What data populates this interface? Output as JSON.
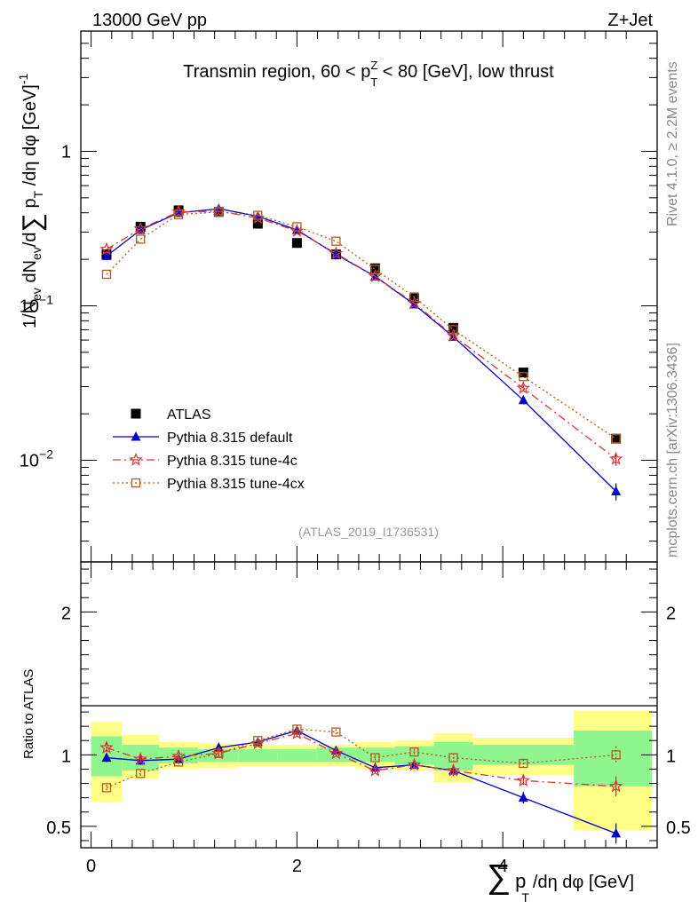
{
  "header": {
    "energy_label": "13000 GeV pp",
    "process_label": "Z+Jet"
  },
  "side_texts": {
    "rivet": "Rivet 4.1.0, ≥ 2.2M events",
    "mcplots": "mcplots.cern.ch [arXiv:1306.3436]"
  },
  "analysis_ref": "(ATLAS_2019_I1736531)",
  "chart_data": [
    {
      "type": "scatter",
      "panel": "main",
      "scale": "log",
      "title_parts": {
        "prefix": "Transmin region, 60 < p",
        "sup": "Z",
        "sub": "T",
        "suffix": " < 80 [GeV], low thrust"
      },
      "ylabel": "1/N_ev dN_ev/d ∑ p_T /dη dφ [GeV]^-1",
      "ylim": [
        0.0022,
        6.0
      ],
      "xlim": [
        -0.1,
        5.5
      ],
      "yticks": [
        {
          "value": 1,
          "label": "1"
        },
        {
          "value": 0.1,
          "label": "10",
          "exp": "−1"
        },
        {
          "value": 0.01,
          "label": "10",
          "exp": "−2"
        }
      ],
      "legend_position": "lower-left",
      "series": [
        {
          "name": "ATLAS",
          "color": "#000000",
          "marker": "filled-square",
          "x": [
            0.15,
            0.48,
            0.85,
            1.24,
            1.62,
            2.0,
            2.38,
            2.76,
            3.14,
            3.52,
            4.2,
            5.1
          ],
          "values": [
            0.215,
            0.325,
            0.415,
            0.405,
            0.34,
            0.255,
            0.215,
            0.175,
            0.112,
            0.072,
            0.037,
            0.0138
          ]
        },
        {
          "name": "Pythia 8.315 default",
          "color": "#0000cc",
          "marker": "filled-triangle",
          "line": "solid",
          "x": [
            0.15,
            0.48,
            0.85,
            1.24,
            1.62,
            2.0,
            2.38,
            2.76,
            3.14,
            3.52,
            4.2,
            5.1
          ],
          "values": [
            0.21,
            0.31,
            0.4,
            0.425,
            0.38,
            0.31,
            0.215,
            0.155,
            0.102,
            0.063,
            0.0245,
            0.0063
          ],
          "err": [
            0,
            0,
            0,
            0,
            0,
            0,
            0,
            0,
            0,
            0.002,
            0.0015,
            0.0008
          ]
        },
        {
          "name": "Pythia 8.315 tune-4c",
          "color": "#dd3333",
          "marker": "open-star",
          "line": "dashdot",
          "x": [
            0.15,
            0.48,
            0.85,
            1.24,
            1.62,
            2.0,
            2.38,
            2.76,
            3.14,
            3.52,
            4.2,
            5.1
          ],
          "values": [
            0.232,
            0.315,
            0.405,
            0.41,
            0.37,
            0.305,
            0.218,
            0.155,
            0.104,
            0.064,
            0.0293,
            0.0102
          ],
          "err": [
            0,
            0,
            0,
            0,
            0,
            0,
            0,
            0,
            0,
            0.002,
            0.0015,
            0.001
          ]
        },
        {
          "name": "Pythia 8.315 tune-4cx",
          "color": "#b05a1e",
          "marker": "open-square",
          "line": "dotted",
          "x": [
            0.15,
            0.48,
            0.85,
            1.24,
            1.62,
            2.0,
            2.38,
            2.76,
            3.14,
            3.52,
            4.2,
            5.1
          ],
          "values": [
            0.16,
            0.27,
            0.39,
            0.405,
            0.385,
            0.325,
            0.262,
            0.172,
            0.114,
            0.07,
            0.0348,
            0.0138
          ],
          "err": [
            0,
            0,
            0,
            0,
            0,
            0,
            0,
            0,
            0,
            0,
            0,
            0
          ]
        }
      ]
    },
    {
      "type": "scatter",
      "panel": "ratio",
      "ylabel": "Ratio to ATLAS",
      "xlabel_parts": {
        "sum": "∑",
        "p": "p",
        "sub": "T",
        "rest": "/dη dφ [GeV]"
      },
      "ylim": [
        0.35,
        2.35
      ],
      "xlim": [
        -0.1,
        5.5
      ],
      "xticks": [
        {
          "value": 0,
          "label": "0"
        },
        {
          "value": 2,
          "label": "2"
        },
        {
          "value": 4,
          "label": "4"
        }
      ],
      "yticks": [
        {
          "value": 0.5,
          "label": "0.5"
        },
        {
          "value": 1,
          "label": "1"
        },
        {
          "value": 2,
          "label": "2"
        }
      ],
      "bins": [
        {
          "lo": 0.0,
          "hi": 0.3,
          "stat": [
            0.85,
            1.13
          ],
          "tot": [
            0.67,
            1.23
          ]
        },
        {
          "lo": 0.3,
          "hi": 0.66,
          "stat": [
            0.89,
            1.07
          ],
          "tot": [
            0.83,
            1.14
          ]
        },
        {
          "lo": 0.66,
          "hi": 1.04,
          "stat": [
            0.94,
            1.05
          ],
          "tot": [
            0.9,
            1.09
          ]
        },
        {
          "lo": 1.04,
          "hi": 1.43,
          "stat": [
            0.95,
            1.04
          ],
          "tot": [
            0.91,
            1.08
          ]
        },
        {
          "lo": 1.43,
          "hi": 1.81,
          "stat": [
            0.95,
            1.04
          ],
          "tot": [
            0.92,
            1.07
          ]
        },
        {
          "lo": 1.81,
          "hi": 2.19,
          "stat": [
            0.95,
            1.04
          ],
          "tot": [
            0.92,
            1.07
          ]
        },
        {
          "lo": 2.19,
          "hi": 2.57,
          "stat": [
            0.95,
            1.05
          ],
          "tot": [
            0.92,
            1.07
          ]
        },
        {
          "lo": 2.57,
          "hi": 2.95,
          "stat": [
            0.95,
            1.05
          ],
          "tot": [
            0.9,
            1.09
          ]
        },
        {
          "lo": 2.95,
          "hi": 3.33,
          "stat": [
            0.93,
            1.06
          ],
          "tot": [
            0.89,
            1.1
          ]
        },
        {
          "lo": 3.33,
          "hi": 3.71,
          "stat": [
            0.89,
            1.09
          ],
          "tot": [
            0.81,
            1.15
          ]
        },
        {
          "lo": 3.71,
          "hi": 4.69,
          "stat": [
            0.93,
            1.07
          ],
          "tot": [
            0.86,
            1.12
          ]
        },
        {
          "lo": 4.69,
          "hi": 5.45,
          "stat": [
            0.78,
            1.17
          ],
          "tot": [
            0.47,
            1.31
          ]
        }
      ],
      "series": [
        {
          "name": "Pythia 8.315 default",
          "color": "#0000cc",
          "marker": "filled-triangle",
          "line": "solid",
          "x": [
            0.15,
            0.48,
            0.85,
            1.24,
            1.62,
            2.0,
            2.38,
            2.76,
            3.14,
            3.52,
            4.2,
            5.1
          ],
          "values": [
            0.98,
            0.96,
            0.97,
            1.05,
            1.09,
            1.17,
            1.03,
            0.91,
            0.93,
            0.89,
            0.7,
            0.45
          ],
          "err": [
            0.03,
            0.03,
            0.03,
            0.02,
            0.02,
            0.02,
            0.03,
            0.03,
            0.03,
            0.04,
            0.04,
            0.07
          ]
        },
        {
          "name": "Pythia 8.315 tune-4c",
          "color": "#dd3333",
          "marker": "open-star",
          "line": "dashdot",
          "x": [
            0.15,
            0.48,
            0.85,
            1.24,
            1.62,
            2.0,
            2.38,
            2.76,
            3.14,
            3.52,
            4.2,
            5.1
          ],
          "values": [
            1.05,
            0.97,
            0.99,
            1.01,
            1.08,
            1.15,
            1.01,
            0.89,
            0.93,
            0.89,
            0.82,
            0.78
          ],
          "err": [
            0.03,
            0.02,
            0.02,
            0.02,
            0.02,
            0.02,
            0.02,
            0.02,
            0.03,
            0.04,
            0.03,
            0.07
          ]
        },
        {
          "name": "Pythia 8.315 tune-4cx",
          "color": "#b05a1e",
          "marker": "open-square",
          "line": "dotted",
          "x": [
            0.15,
            0.48,
            0.85,
            1.24,
            1.62,
            2.0,
            2.38,
            2.76,
            3.14,
            3.52,
            4.2,
            5.1
          ],
          "values": [
            0.77,
            0.87,
            0.95,
            1.01,
            1.1,
            1.18,
            1.16,
            0.98,
            1.02,
            0.98,
            0.94,
            1.0
          ],
          "err": [
            0.02,
            0.02,
            0.02,
            0.02,
            0.02,
            0.02,
            0.02,
            0.02,
            0.02,
            0.03,
            0.03,
            0.06
          ]
        }
      ]
    }
  ]
}
